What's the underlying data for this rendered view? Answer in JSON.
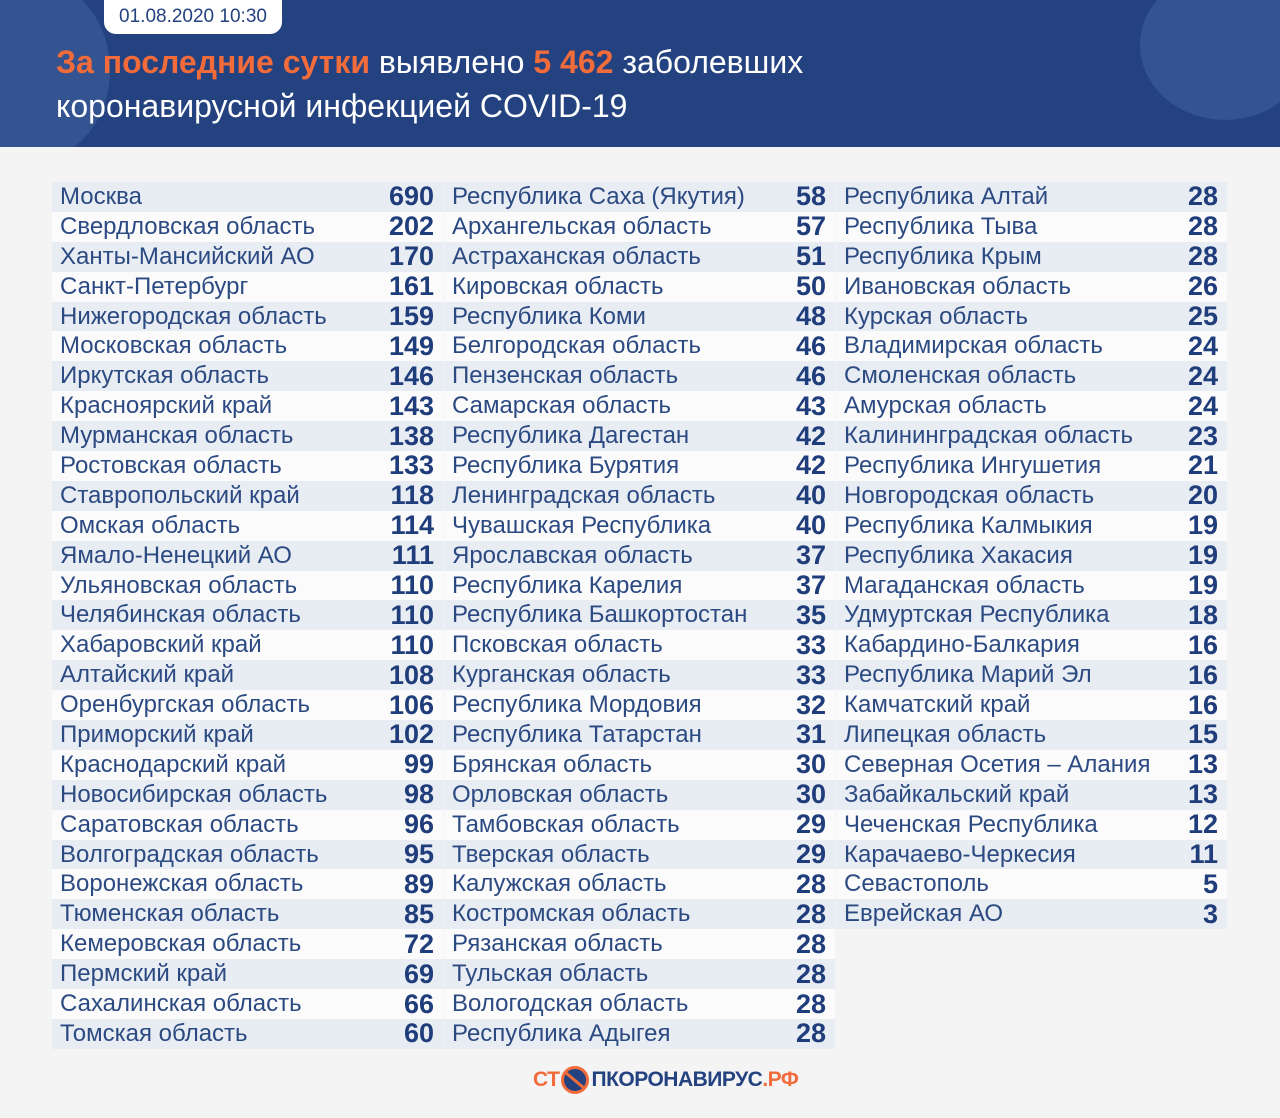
{
  "header": {
    "date": "01.08.2020 10:30",
    "title_accent": "За последние сутки",
    "title_mid": " выявлено ",
    "count": "5 462",
    "title_end": " заболевших",
    "title_line2": "коронавирусной инфекцией COVID-19"
  },
  "colors": {
    "header_bg": "#23427f",
    "accent": "#f26b3a",
    "value": "#1f3d7a"
  },
  "columns": [
    [
      [
        "Москва",
        "690"
      ],
      [
        "Свердловская область",
        "202"
      ],
      [
        "Ханты-Мансийский АО",
        "170"
      ],
      [
        "Санкт-Петербург",
        "161"
      ],
      [
        "Нижегородская область",
        "159"
      ],
      [
        "Московская область",
        "149"
      ],
      [
        "Иркутская область",
        "146"
      ],
      [
        "Красноярский край",
        "143"
      ],
      [
        "Мурманская область",
        "138"
      ],
      [
        "Ростовская область",
        "133"
      ],
      [
        "Ставропольский край",
        "118"
      ],
      [
        "Омская область",
        "114"
      ],
      [
        "Ямало-Ненецкий АО",
        "111"
      ],
      [
        "Ульяновская область",
        "110"
      ],
      [
        "Челябинская область",
        "110"
      ],
      [
        "Хабаровский край",
        "110"
      ],
      [
        "Алтайский край",
        "108"
      ],
      [
        "Оренбургская область",
        "106"
      ],
      [
        "Приморский край",
        "102"
      ],
      [
        "Краснодарский край",
        "99"
      ],
      [
        "Новосибирская область",
        "98"
      ],
      [
        "Саратовская область",
        "96"
      ],
      [
        "Волгоградская область",
        "95"
      ],
      [
        "Воронежская область",
        "89"
      ],
      [
        "Тюменская область",
        "85"
      ],
      [
        "Кемеровская область",
        "72"
      ],
      [
        "Пермский край",
        "69"
      ],
      [
        "Сахалинская область",
        "66"
      ],
      [
        "Томская область",
        "60"
      ]
    ],
    [
      [
        "Республика Саха (Якутия)",
        "58"
      ],
      [
        "Архангельская область",
        "57"
      ],
      [
        "Астраханская область",
        "51"
      ],
      [
        "Кировская область",
        "50"
      ],
      [
        "Республика Коми",
        "48"
      ],
      [
        "Белгородская область",
        "46"
      ],
      [
        "Пензенская область",
        "46"
      ],
      [
        "Самарская область",
        "43"
      ],
      [
        "Республика Дагестан",
        "42"
      ],
      [
        "Республика Бурятия",
        "42"
      ],
      [
        "Ленинградская область",
        "40"
      ],
      [
        "Чувашская Республика",
        "40"
      ],
      [
        "Ярославская область",
        "37"
      ],
      [
        "Республика Карелия",
        "37"
      ],
      [
        "Республика Башкортостан",
        "35"
      ],
      [
        "Псковская область",
        "33"
      ],
      [
        "Курганская область",
        "33"
      ],
      [
        "Республика Мордовия",
        "32"
      ],
      [
        "Республика Татарстан",
        "31"
      ],
      [
        "Брянская область",
        "30"
      ],
      [
        "Орловская область",
        "30"
      ],
      [
        "Тамбовская область",
        "29"
      ],
      [
        "Тверская область",
        "29"
      ],
      [
        "Калужская область",
        "28"
      ],
      [
        "Костромская область",
        "28"
      ],
      [
        "Рязанская область",
        "28"
      ],
      [
        "Тульская область",
        "28"
      ],
      [
        "Вологодская область",
        "28"
      ],
      [
        "Республика Адыгея",
        "28"
      ]
    ],
    [
      [
        "Республика Алтай",
        "28"
      ],
      [
        "Республика Тыва",
        "28"
      ],
      [
        "Республика Крым",
        "28"
      ],
      [
        "Ивановская область",
        "26"
      ],
      [
        "Курская область",
        "25"
      ],
      [
        "Владимирская область",
        "24"
      ],
      [
        "Смоленская область",
        "24"
      ],
      [
        "Амурская область",
        "24"
      ],
      [
        "Калининградская область",
        "23"
      ],
      [
        "Республика Ингушетия",
        "21"
      ],
      [
        "Новгородская область",
        "20"
      ],
      [
        "Республика Калмыкия",
        "19"
      ],
      [
        "Республика Хакасия",
        "19"
      ],
      [
        "Магаданская область",
        "19"
      ],
      [
        "Удмуртская Республика",
        "18"
      ],
      [
        "Кабардино-Балкария",
        "16"
      ],
      [
        "Республика Марий Эл",
        "16"
      ],
      [
        "Камчатский край",
        "16"
      ],
      [
        "Липецкая область",
        "15"
      ],
      [
        "Северная Осетия – Алания",
        "13"
      ],
      [
        "Забайкальский край",
        "13"
      ],
      [
        "Чеченская Республика",
        "12"
      ],
      [
        "Карачаево-Черкесия",
        "11"
      ],
      [
        "Севастополь",
        "5"
      ],
      [
        "Еврейская АО",
        "3"
      ]
    ]
  ],
  "footer": {
    "logo_part1": "СТ",
    "logo_part2": "ПКОРОНАВИРУС",
    "logo_part3": ".РФ"
  }
}
